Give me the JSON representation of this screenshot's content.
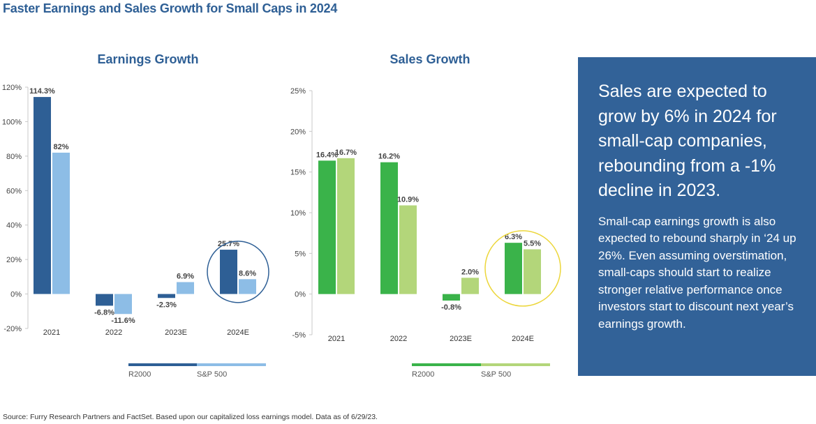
{
  "page": {
    "title": "Faster Earnings and Sales Growth for Small Caps in 2024",
    "source": "Source: Furry Research Partners and FactSet. Based upon our capitalized loss earnings model. Data as of 6/29/23."
  },
  "side_panel": {
    "headline": "Sales are expected to grow by 6% in 2024 for small-cap companies, rebounding from a -1% decline in 2023.",
    "body": "Small-cap earnings growth is also expected to rebound sharply in ‘24 up 26%. Even assuming overstimation, small-caps should start to realize stronger relative performance once investors start to discount next year’s earnings growth.",
    "background": "#326298"
  },
  "chart_data": [
    {
      "type": "bar",
      "title": "Earnings Growth",
      "categories": [
        "2021",
        "2022",
        "2023E",
        "2024E"
      ],
      "series": [
        {
          "name": "R2000",
          "values": [
            114.3,
            -6.8,
            -2.3,
            25.7
          ],
          "labels": [
            "114.3%",
            "-6.8%",
            "-2.3%",
            "25.7%"
          ],
          "color": "#2e5f95"
        },
        {
          "name": "S&P 500",
          "values": [
            82,
            -11.6,
            6.9,
            8.6
          ],
          "labels": [
            "82%",
            "-11.6%",
            "6.9%",
            "8.6%"
          ],
          "color": "#8dbde6"
        }
      ],
      "ylim": [
        -20,
        120
      ],
      "yticks": [
        -20,
        0,
        20,
        40,
        60,
        80,
        100,
        120
      ],
      "ytick_labels": [
        "-20%",
        "0%",
        "20%",
        "40%",
        "60%",
        "80%",
        "100%",
        "120%"
      ],
      "highlight_category": "2024E",
      "highlight_color": "#2e5f95",
      "legend": "bottom",
      "grid": false
    },
    {
      "type": "bar",
      "title": "Sales Growth",
      "categories": [
        "2021",
        "2022",
        "2023E",
        "2024E"
      ],
      "series": [
        {
          "name": "R2000",
          "values": [
            16.4,
            16.2,
            -0.8,
            6.3
          ],
          "labels": [
            "16.4%",
            "16.2%",
            "-0.8%",
            "6.3%"
          ],
          "color": "#3ab34a"
        },
        {
          "name": "S&P 500",
          "values": [
            16.7,
            10.9,
            2.0,
            5.5
          ],
          "labels": [
            "16.7%",
            "10.9%",
            "2.0%",
            "5.5%"
          ],
          "color": "#b3d67a"
        }
      ],
      "ylim": [
        -5,
        25
      ],
      "yticks": [
        -5,
        0,
        5,
        10,
        15,
        20,
        25
      ],
      "ytick_labels": [
        "-5%",
        "0%",
        "5%",
        "10%",
        "15%",
        "20%",
        "25%"
      ],
      "highlight_category": "2024E",
      "highlight_color": "#ecd63a",
      "legend": "bottom",
      "grid": false
    }
  ]
}
